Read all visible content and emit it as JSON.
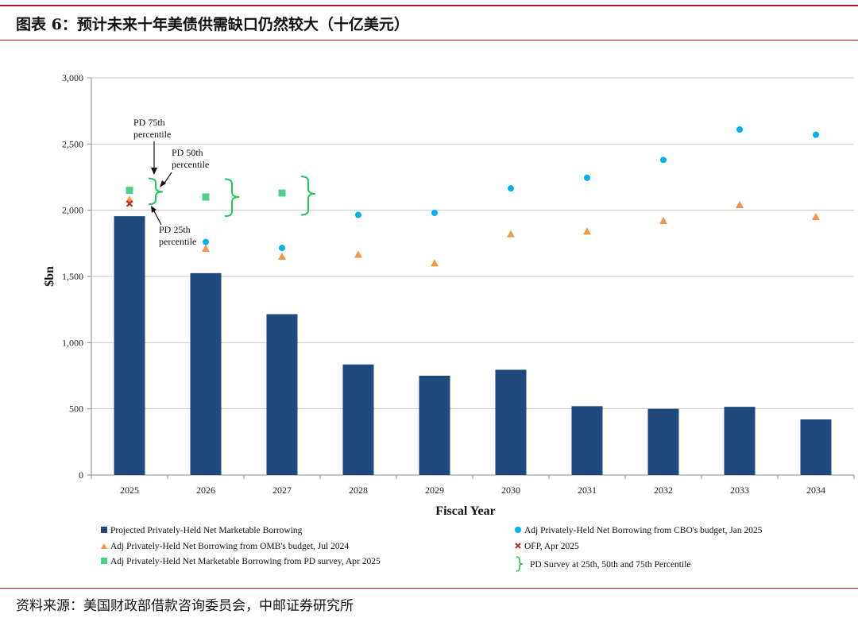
{
  "header": {
    "title": "图表 6：预计未来十年美债供需缺口仍然较大（十亿美元）"
  },
  "footer": {
    "source": "资料来源：美国财政部借款咨询委员会，中邮证券研究所"
  },
  "colors": {
    "accent": "#b9131d",
    "bar": "#1f497d",
    "cbo": "#00b0f0",
    "omb": "#f79646",
    "pd": "#4bd28a",
    "ofp": "#c0282d",
    "brace": "#22c55e",
    "grid": "#c8c8c8"
  },
  "chart_data": {
    "type": "bar",
    "title": "",
    "xlabel": "Fiscal Year",
    "ylabel": "$bn",
    "ylim": [
      0,
      3000
    ],
    "yticks": [
      0,
      500,
      1000,
      1500,
      2000,
      2500,
      3000
    ],
    "ytick_labels": [
      "0",
      "500",
      "1,000",
      "1,500",
      "2,000",
      "2,500",
      "3,000"
    ],
    "grid": true,
    "categories": [
      "2025",
      "2026",
      "2027",
      "2028",
      "2029",
      "2030",
      "2031",
      "2032",
      "2033",
      "2034"
    ],
    "series": [
      {
        "name": "Projected Privately-Held Net Marketable Borrowing",
        "kind": "bar",
        "values": [
          1955,
          1525,
          1215,
          835,
          750,
          795,
          520,
          500,
          515,
          420
        ]
      },
      {
        "name": "Adj Privately-Held Net Borrowing from CBO's budget, Jan 2025",
        "kind": "circle",
        "values": [
          null,
          1760,
          1715,
          1965,
          1980,
          2165,
          2245,
          2380,
          2610,
          2570
        ]
      },
      {
        "name": "Adj Privately-Held Net Borrowing from OMB's budget, Jul 2024",
        "kind": "triangle",
        "values": [
          2080,
          1710,
          1650,
          1665,
          1600,
          1820,
          1840,
          1920,
          2040,
          1950
        ]
      },
      {
        "name": "OFP, Apr 2025",
        "kind": "x",
        "values": [
          2050,
          null,
          null,
          null,
          null,
          null,
          null,
          null,
          null,
          null
        ]
      },
      {
        "name": "Adj Privately-Held Net Marketable Borrowing from PD survey, Apr 2025",
        "kind": "square",
        "values": [
          2150,
          2100,
          2130,
          null,
          null,
          null,
          null,
          null,
          null,
          null
        ]
      }
    ],
    "pd_survey": {
      "name": "PD Survey at 25th, 50th and 75th Percentile",
      "ranges": [
        {
          "category": "2025",
          "p25": 2045,
          "p50": 2140,
          "p75": 2240
        },
        {
          "category": "2026",
          "p25": 1955,
          "p50": 2100,
          "p75": 2235
        },
        {
          "category": "2027",
          "p25": 1965,
          "p50": 2125,
          "p75": 2255
        }
      ]
    },
    "annotations": [
      {
        "text": [
          "PD 75th",
          "percentile"
        ]
      },
      {
        "text": [
          "PD 50th",
          "percentile"
        ]
      },
      {
        "text": [
          "PD 25th",
          "percentile"
        ]
      }
    ],
    "legend": {
      "placement": "bottom"
    }
  }
}
